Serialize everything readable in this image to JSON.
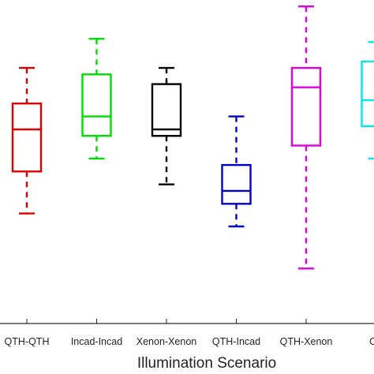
{
  "chart_data": {
    "type": "box",
    "xlabel": "Illumination Scenario",
    "ylabel": "",
    "title": "",
    "grid": false,
    "legend": "none",
    "categories": [
      "QTH-QTH",
      "Incad-Incad",
      "Xenon-Xenon",
      "QTH-Incad",
      "QTH-Xenon",
      "Ou"
    ],
    "ylim": [
      0,
      1
    ],
    "boxes": [
      {
        "category": "QTH-QTH",
        "color": "#dd0000",
        "min": 0.34,
        "q1": 0.47,
        "median": 0.6,
        "q3": 0.68,
        "max": 0.79
      },
      {
        "category": "Incad-Incad",
        "color": "#00dd00",
        "min": 0.51,
        "q1": 0.58,
        "median": 0.64,
        "q3": 0.77,
        "max": 0.88
      },
      {
        "category": "Xenon-Xenon",
        "color": "#000000",
        "min": 0.43,
        "q1": 0.58,
        "median": 0.6,
        "q3": 0.74,
        "max": 0.79
      },
      {
        "category": "QTH-Incad",
        "color": "#0000cc",
        "min": 0.3,
        "q1": 0.37,
        "median": 0.41,
        "q3": 0.49,
        "max": 0.64
      },
      {
        "category": "QTH-Xenon",
        "color": "#e000e0",
        "min": 0.17,
        "q1": 0.55,
        "median": 0.73,
        "q3": 0.79,
        "max": 0.98
      },
      {
        "category": "Ou",
        "color": "#00e8e8",
        "min": 0.51,
        "q1": 0.61,
        "median": 0.69,
        "q3": 0.81,
        "max": 0.87
      }
    ]
  }
}
